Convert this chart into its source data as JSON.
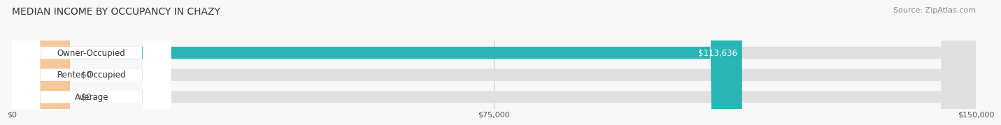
{
  "title": "MEDIAN INCOME BY OCCUPANCY IN CHAZY",
  "source": "Source: ZipAtlas.com",
  "categories": [
    "Owner-Occupied",
    "Renter-Occupied",
    "Average"
  ],
  "values": [
    113636,
    0,
    0
  ],
  "bar_colors": [
    "#2ab5b5",
    "#b09ec0",
    "#f5c899"
  ],
  "xmax": 150000,
  "xticks": [
    0,
    75000,
    150000
  ],
  "xtick_labels": [
    "$0",
    "$75,000",
    "$150,000"
  ],
  "bar_height": 0.55,
  "value_labels": [
    "$113,636",
    "$0",
    "$0"
  ],
  "title_fontsize": 10,
  "source_fontsize": 8,
  "label_fontsize": 8.5,
  "tick_fontsize": 8
}
